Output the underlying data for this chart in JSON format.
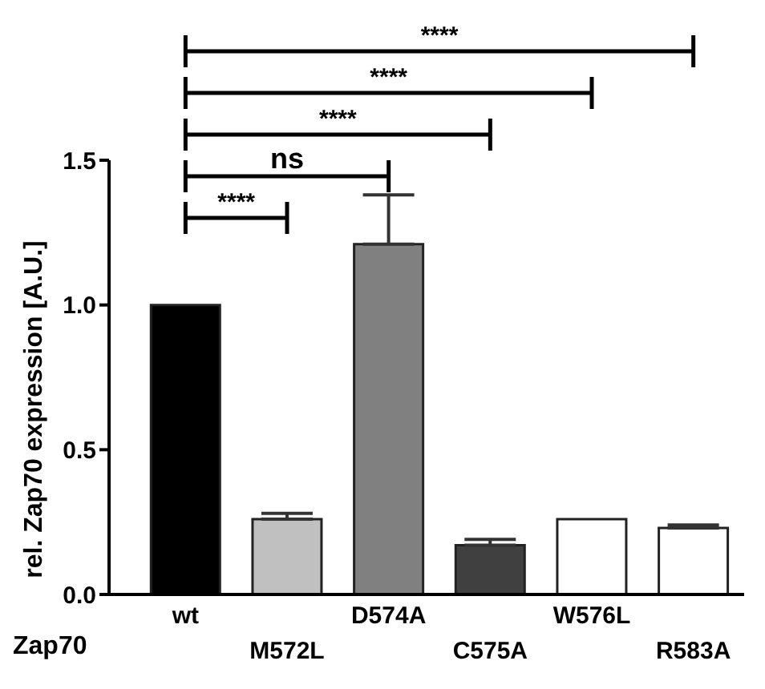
{
  "chart_data": {
    "type": "bar",
    "ylabel": "rel. Zap70 expression [A.U.]",
    "xlabel": "Zap70",
    "categories": [
      "wt",
      "M572L",
      "D574A",
      "C575A",
      "W576L",
      "R583A"
    ],
    "values": [
      1.0,
      0.26,
      1.21,
      0.17,
      0.26,
      0.23
    ],
    "errors": [
      null,
      [
        0.26,
        0.28
      ],
      [
        1.21,
        1.38
      ],
      [
        0.17,
        0.19
      ],
      null,
      [
        0.23,
        0.24
      ]
    ],
    "colors": [
      "#000000",
      "#c0c0c0",
      "#808080",
      "#404040",
      "#ffffff",
      "#ffffff"
    ],
    "ylim": [
      0,
      1.5
    ],
    "yticks": [
      {
        "value": 0,
        "label": "0.0"
      },
      {
        "value": 0.5,
        "label": "0.5"
      },
      {
        "value": 1,
        "label": "1.0"
      },
      {
        "value": 1.5,
        "label": "1.5"
      }
    ],
    "grid": false,
    "legend": false,
    "annotations": [
      "****",
      "ns",
      "****",
      "****",
      "****"
    ]
  }
}
